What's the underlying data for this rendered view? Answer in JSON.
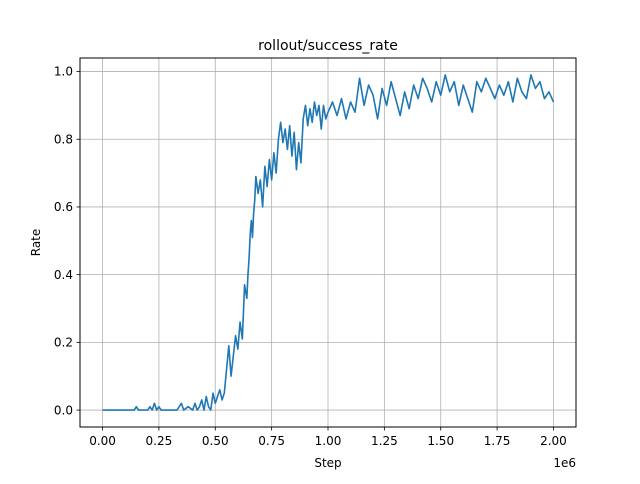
{
  "chart_data": {
    "type": "line",
    "title": "rollout/success_rate",
    "xlabel": "Step",
    "ylabel": "Rate",
    "x_offset_label": "1e6",
    "xlim": [
      -0.1,
      2.1
    ],
    "ylim": [
      -0.05,
      1.04
    ],
    "x_ticks": [
      0.0,
      0.25,
      0.5,
      0.75,
      1.0,
      1.25,
      1.5,
      1.75,
      2.0
    ],
    "x_tick_labels": [
      "0.00",
      "0.25",
      "0.50",
      "0.75",
      "1.00",
      "1.25",
      "1.50",
      "1.75",
      "2.00"
    ],
    "y_ticks": [
      0.0,
      0.2,
      0.4,
      0.6,
      0.8,
      1.0
    ],
    "y_tick_labels": [
      "0.0",
      "0.2",
      "0.4",
      "0.6",
      "0.8",
      "1.0"
    ],
    "grid": true,
    "line_color": "#1f77b4",
    "series": [
      {
        "x": [
          0.0,
          0.05,
          0.1,
          0.14,
          0.15,
          0.16,
          0.2,
          0.21,
          0.22,
          0.23,
          0.24,
          0.25,
          0.26,
          0.27,
          0.3,
          0.33,
          0.34,
          0.35,
          0.36,
          0.38,
          0.4,
          0.41,
          0.42,
          0.43,
          0.44,
          0.45,
          0.46,
          0.47,
          0.48,
          0.49,
          0.5,
          0.51,
          0.52,
          0.53,
          0.54,
          0.55,
          0.56,
          0.57,
          0.58,
          0.59,
          0.6,
          0.61,
          0.62,
          0.63,
          0.64,
          0.645,
          0.65,
          0.655,
          0.66,
          0.665,
          0.67,
          0.675,
          0.68,
          0.69,
          0.7,
          0.71,
          0.72,
          0.73,
          0.74,
          0.75,
          0.76,
          0.77,
          0.78,
          0.79,
          0.8,
          0.81,
          0.82,
          0.83,
          0.84,
          0.85,
          0.86,
          0.87,
          0.88,
          0.89,
          0.9,
          0.91,
          0.92,
          0.93,
          0.94,
          0.95,
          0.96,
          0.97,
          0.98,
          0.99,
          1.0,
          1.02,
          1.04,
          1.06,
          1.08,
          1.1,
          1.12,
          1.14,
          1.16,
          1.18,
          1.2,
          1.22,
          1.24,
          1.26,
          1.28,
          1.3,
          1.32,
          1.34,
          1.36,
          1.38,
          1.4,
          1.42,
          1.44,
          1.46,
          1.48,
          1.5,
          1.52,
          1.54,
          1.56,
          1.58,
          1.6,
          1.62,
          1.64,
          1.66,
          1.68,
          1.7,
          1.72,
          1.74,
          1.76,
          1.78,
          1.8,
          1.82,
          1.84,
          1.86,
          1.88,
          1.9,
          1.92,
          1.94,
          1.96,
          1.98,
          2.0
        ],
        "y": [
          0.0,
          0.0,
          0.0,
          0.0,
          0.01,
          0.0,
          0.0,
          0.01,
          0.0,
          0.02,
          0.0,
          0.01,
          0.0,
          0.0,
          0.0,
          0.0,
          0.01,
          0.02,
          0.0,
          0.01,
          0.0,
          0.02,
          0.0,
          0.01,
          0.03,
          0.0,
          0.04,
          0.01,
          0.0,
          0.05,
          0.02,
          0.04,
          0.06,
          0.03,
          0.05,
          0.12,
          0.19,
          0.1,
          0.16,
          0.22,
          0.18,
          0.26,
          0.21,
          0.37,
          0.33,
          0.4,
          0.45,
          0.52,
          0.56,
          0.51,
          0.58,
          0.62,
          0.69,
          0.64,
          0.68,
          0.6,
          0.72,
          0.66,
          0.74,
          0.68,
          0.76,
          0.7,
          0.8,
          0.85,
          0.79,
          0.83,
          0.77,
          0.84,
          0.75,
          0.82,
          0.71,
          0.79,
          0.73,
          0.86,
          0.9,
          0.84,
          0.89,
          0.85,
          0.91,
          0.87,
          0.9,
          0.83,
          0.9,
          0.86,
          0.88,
          0.91,
          0.87,
          0.92,
          0.86,
          0.91,
          0.88,
          0.98,
          0.9,
          0.96,
          0.93,
          0.86,
          0.95,
          0.9,
          0.97,
          0.92,
          0.87,
          0.94,
          0.89,
          0.96,
          0.92,
          0.98,
          0.95,
          0.91,
          0.97,
          0.93,
          0.99,
          0.94,
          0.97,
          0.9,
          0.96,
          0.92,
          0.88,
          0.97,
          0.94,
          0.98,
          0.95,
          0.92,
          0.96,
          0.93,
          0.97,
          0.91,
          0.98,
          0.94,
          0.92,
          0.99,
          0.95,
          0.97,
          0.92,
          0.94,
          0.91
        ]
      }
    ]
  }
}
